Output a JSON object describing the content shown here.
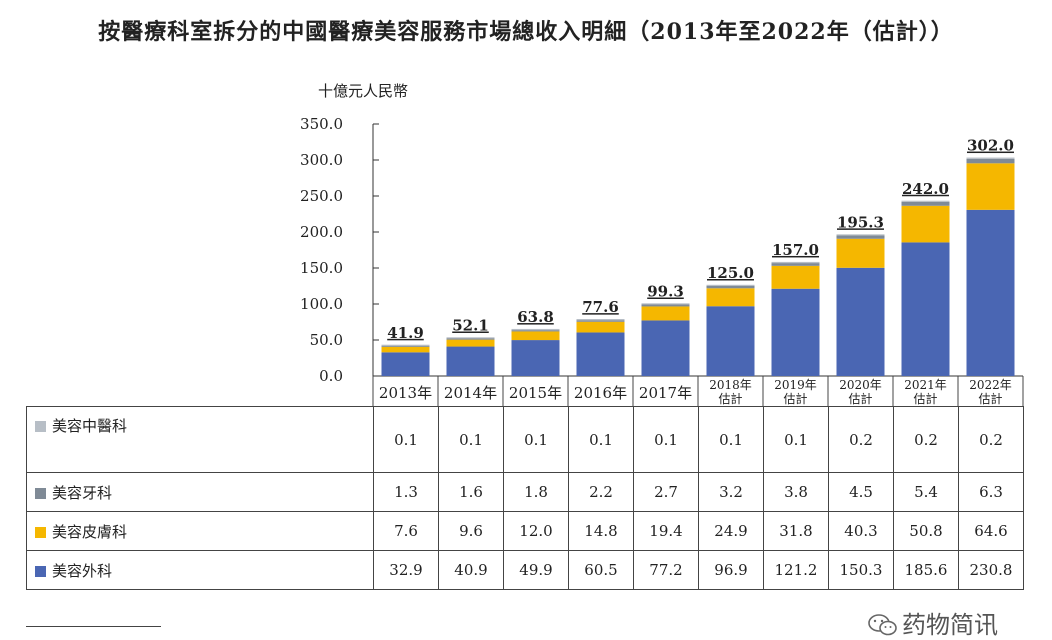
{
  "title": "按醫療科室拆分的中國醫療美容服務市場總收入明細（2013年至2022年（估計））",
  "watermark": "药物简讯",
  "chart_data": {
    "type": "bar",
    "stacked": true,
    "unit_label": "十億元人民幣",
    "ylim": [
      0,
      350
    ],
    "yticks": [
      "0.0",
      "50.0",
      "100.0",
      "150.0",
      "200.0",
      "250.0",
      "300.0",
      "350.0"
    ],
    "categories": [
      "2013年",
      "2014年",
      "2015年",
      "2016年",
      "2017年",
      "2018年\n估計",
      "2019年\n估計",
      "2020年\n估計",
      "2021年\n估計",
      "2022年\n估計"
    ],
    "totals": [
      "41.9",
      "52.1",
      "63.8",
      "77.6",
      "99.3",
      "125.0",
      "157.0",
      "195.3",
      "242.0",
      "302.0"
    ],
    "series": [
      {
        "name": "美容外科",
        "color": "#4a66b3",
        "values": [
          32.9,
          40.9,
          49.9,
          60.5,
          77.2,
          96.9,
          121.2,
          150.3,
          185.6,
          230.8
        ]
      },
      {
        "name": "美容皮膚科",
        "color": "#f5b700",
        "values": [
          7.6,
          9.6,
          12.0,
          14.8,
          19.4,
          24.9,
          31.8,
          40.3,
          50.8,
          64.6
        ]
      },
      {
        "name": "美容牙科",
        "color": "#7f8a96",
        "values": [
          1.3,
          1.6,
          1.8,
          2.2,
          2.7,
          3.2,
          3.8,
          4.5,
          5.4,
          6.3
        ]
      },
      {
        "name": "美容中醫科",
        "color": "#b7bec6",
        "values": [
          0.1,
          0.1,
          0.1,
          0.1,
          0.1,
          0.1,
          0.1,
          0.2,
          0.2,
          0.2
        ]
      }
    ],
    "table_rows": [
      {
        "name": "美容中醫科",
        "color": "#b7bec6",
        "cells": [
          "0.1",
          "0.1",
          "0.1",
          "0.1",
          "0.1",
          "0.1",
          "0.1",
          "0.2",
          "0.2",
          "0.2"
        ]
      },
      {
        "name": "美容牙科",
        "color": "#7f8a96",
        "cells": [
          "1.3",
          "1.6",
          "1.8",
          "2.2",
          "2.7",
          "3.2",
          "3.8",
          "4.5",
          "5.4",
          "6.3"
        ]
      },
      {
        "name": "美容皮膚科",
        "color": "#f5b700",
        "cells": [
          "7.6",
          "9.6",
          "12.0",
          "14.8",
          "19.4",
          "24.9",
          "31.8",
          "40.3",
          "50.8",
          "64.6"
        ]
      },
      {
        "name": "美容外科",
        "color": "#4a66b3",
        "cells": [
          "32.9",
          "40.9",
          "49.9",
          "60.5",
          "77.2",
          "96.9",
          "121.2",
          "150.3",
          "185.6",
          "230.8"
        ]
      }
    ]
  }
}
